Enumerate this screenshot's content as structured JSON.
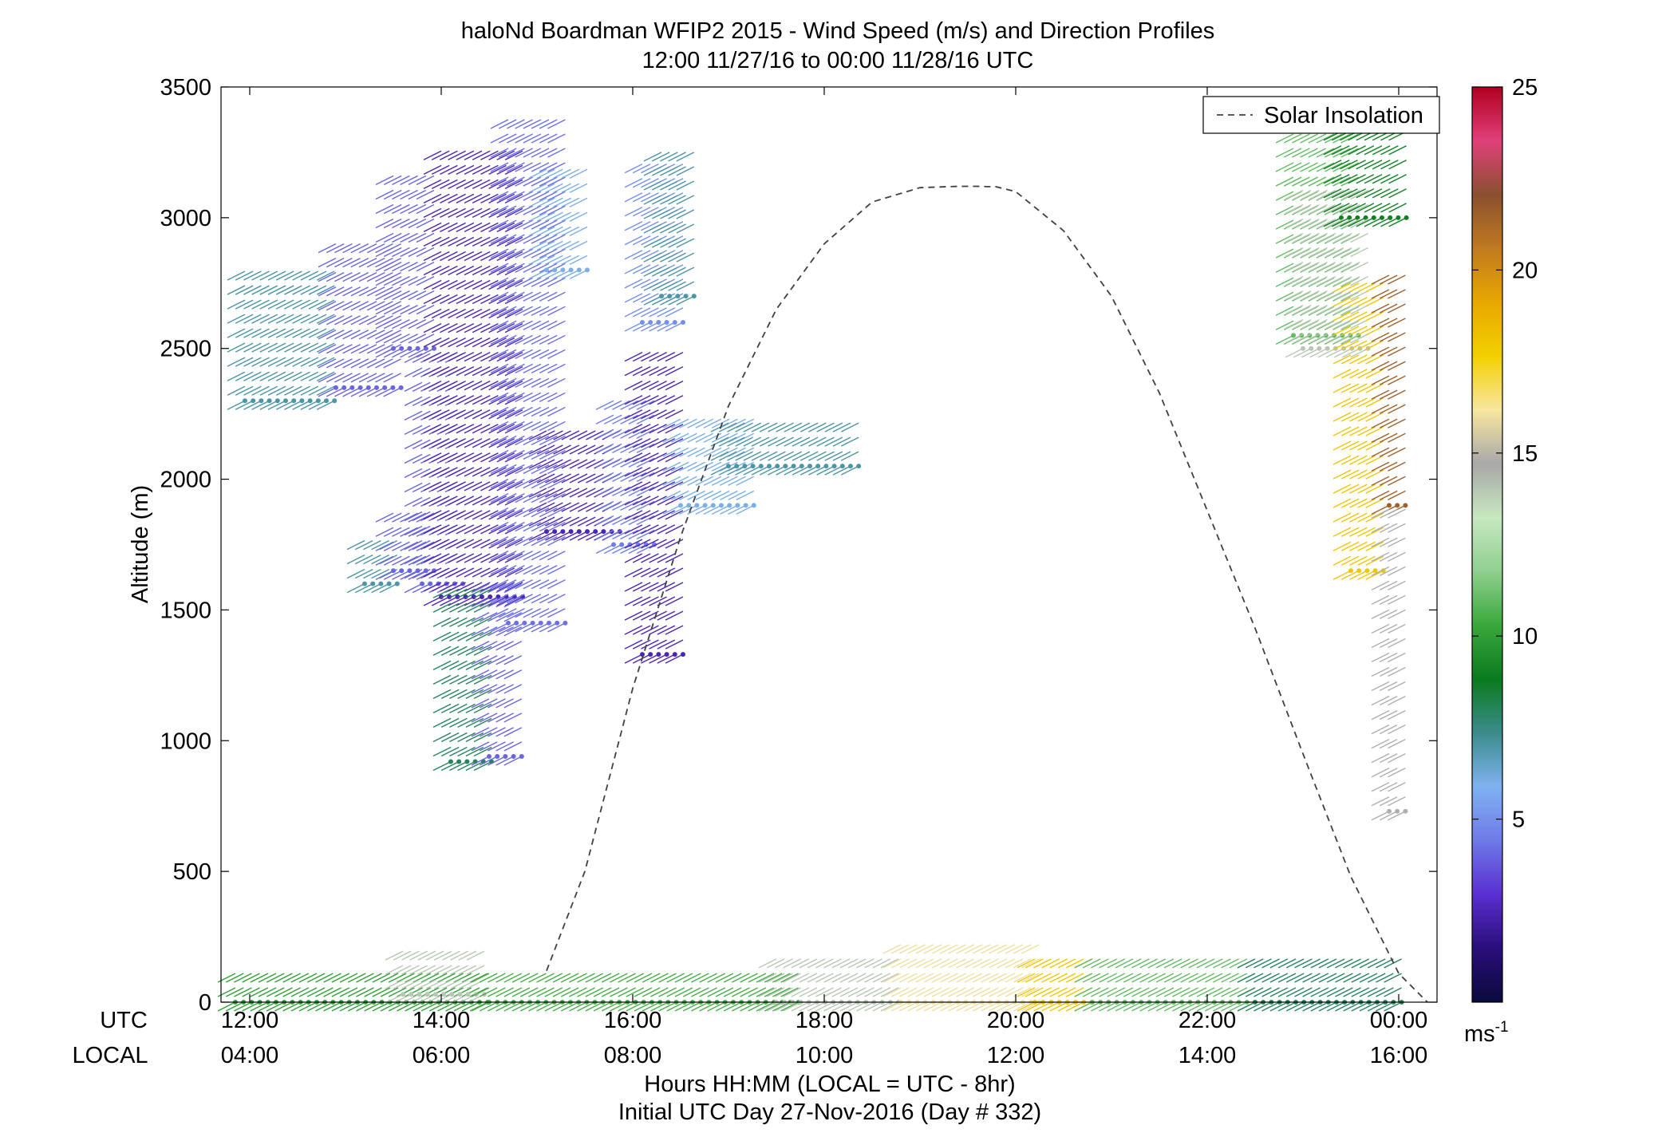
{
  "chart_data": {
    "type": "scatter",
    "title": "haloNd Boardman WFIP2 2015 - Wind Speed (m/s) and Direction Profiles",
    "subtitle": "12:00 11/27/16 to 00:00 11/28/16  UTC",
    "ylabel": "Altitude (m)",
    "xlabel": "Hours HH:MM  (LOCAL = UTC - 8hr)",
    "xlabel2": "Initial UTC Day 27-Nov-2016 (Day # 332)",
    "axis_row_labels": [
      "UTC",
      "LOCAL"
    ],
    "x_ticks_utc": [
      "12:00",
      "14:00",
      "16:00",
      "18:00",
      "20:00",
      "22:00",
      "00:00"
    ],
    "x_ticks_local": [
      "04:00",
      "06:00",
      "08:00",
      "10:00",
      "12:00",
      "14:00",
      "16:00"
    ],
    "x_tick_hours": [
      12,
      14,
      16,
      18,
      20,
      22,
      24
    ],
    "xlim": [
      11.7,
      24.4
    ],
    "y_ticks": [
      0,
      500,
      1000,
      1500,
      2000,
      2500,
      3000,
      3500
    ],
    "ylim": [
      0,
      3500
    ],
    "legend": {
      "label": "Solar Insolation",
      "position": "top-right"
    },
    "colorbar": {
      "ticks": [
        5,
        10,
        15,
        20,
        25
      ],
      "range": [
        0,
        25
      ],
      "unit_label": "ms",
      "unit_exponent": "-1",
      "colors": [
        "#0a0a3c",
        "#2a0e7a",
        "#5a2fd0",
        "#6f7ae8",
        "#7fb2f0",
        "#3c8c8c",
        "#0a7a1e",
        "#3aa83c",
        "#8fcf8f",
        "#c7e8c0",
        "#a8a8a8",
        "#f8e6a0",
        "#f2d000",
        "#e8a800",
        "#c07a20",
        "#8a5030",
        "#e0407a",
        "#b00020"
      ]
    },
    "solar_insolation": {
      "x": [
        15.1,
        15.5,
        16,
        16.5,
        17,
        17.5,
        18,
        18.5,
        19,
        19.4,
        19.6,
        19.8,
        20,
        20.5,
        21,
        21.5,
        22,
        22.5,
        23,
        23.5,
        24,
        24.3
      ],
      "y": [
        120,
        500,
        1200,
        1780,
        2280,
        2650,
        2900,
        3060,
        3115,
        3120,
        3120,
        3118,
        3100,
        2950,
        2700,
        2330,
        1880,
        1430,
        950,
        480,
        110,
        0
      ]
    },
    "wind_clusters": [
      {
        "x0": 11.95,
        "x1": 12.9,
        "y0": 2300,
        "y1": 2800,
        "speed": 7
      },
      {
        "x0": 12.9,
        "x1": 13.6,
        "y0": 2350,
        "y1": 2950,
        "speed": 4
      },
      {
        "x0": 13.5,
        "x1": 14.0,
        "y0": 2500,
        "y1": 3200,
        "speed": 4
      },
      {
        "x0": 13.2,
        "x1": 13.6,
        "y0": 1600,
        "y1": 1800,
        "speed": 7
      },
      {
        "x0": 13.5,
        "x1": 14.0,
        "y0": 1650,
        "y1": 1900,
        "speed": 4
      },
      {
        "x0": 13.8,
        "x1": 14.3,
        "y0": 1600,
        "y1": 2500,
        "speed": 4
      },
      {
        "x0": 14.0,
        "x1": 14.9,
        "y0": 1550,
        "y1": 3300,
        "speed": 2.5
      },
      {
        "x0": 14.1,
        "x1": 14.6,
        "y0": 920,
        "y1": 1600,
        "speed": 8
      },
      {
        "x0": 14.5,
        "x1": 14.9,
        "y0": 940,
        "y1": 1600,
        "speed": 4
      },
      {
        "x0": 14.7,
        "x1": 15.3,
        "y0": 1450,
        "y1": 3400,
        "speed": 4.2
      },
      {
        "x0": 15.1,
        "x1": 15.6,
        "y0": 2800,
        "y1": 3200,
        "speed": 6
      },
      {
        "x0": 15.1,
        "x1": 15.9,
        "y0": 1800,
        "y1": 2200,
        "speed": 2.5
      },
      {
        "x0": 15.8,
        "x1": 16.3,
        "y0": 1750,
        "y1": 2350,
        "speed": 4.5
      },
      {
        "x0": 16.1,
        "x1": 16.6,
        "y0": 1330,
        "y1": 2500,
        "speed": 2.5
      },
      {
        "x0": 16.1,
        "x1": 16.6,
        "y0": 2600,
        "y1": 3250,
        "speed": 5
      },
      {
        "x0": 16.3,
        "x1": 16.7,
        "y0": 2700,
        "y1": 3250,
        "speed": 7
      },
      {
        "x0": 16.5,
        "x1": 17.3,
        "y0": 1900,
        "y1": 2250,
        "speed": 6
      },
      {
        "x0": 17.0,
        "x1": 18.4,
        "y0": 2050,
        "y1": 2250,
        "speed": 7
      },
      {
        "x0": 11.85,
        "x1": 14.5,
        "y0": 0,
        "y1": 130,
        "speed": 10
      },
      {
        "x0": 13.6,
        "x1": 14.5,
        "y0": 30,
        "y1": 200,
        "speed": 14
      },
      {
        "x0": 14.5,
        "x1": 17.8,
        "y0": 0,
        "y1": 130,
        "speed": 10.5
      },
      {
        "x0": 17.5,
        "x1": 18.8,
        "y0": 0,
        "y1": 180,
        "speed": 14
      },
      {
        "x0": 18.8,
        "x1": 20.3,
        "y0": 0,
        "y1": 260,
        "speed": 16
      },
      {
        "x0": 20.2,
        "x1": 20.8,
        "y0": 0,
        "y1": 200,
        "speed": 18
      },
      {
        "x0": 20.8,
        "x1": 22.5,
        "y0": 0,
        "y1": 180,
        "speed": 11
      },
      {
        "x0": 22.5,
        "x1": 24.1,
        "y0": 0,
        "y1": 200,
        "speed": 8
      },
      {
        "x0": 22.9,
        "x1": 23.6,
        "y0": 2550,
        "y1": 3450,
        "speed": 11
      },
      {
        "x0": 23.4,
        "x1": 24.1,
        "y0": 3000,
        "y1": 3450,
        "speed": 9
      },
      {
        "x0": 23.0,
        "x1": 23.7,
        "y0": 2500,
        "y1": 3150,
        "speed": 14
      },
      {
        "x0": 23.5,
        "x1": 23.9,
        "y0": 1650,
        "y1": 2750,
        "speed": 18
      },
      {
        "x0": 23.9,
        "x1": 24.1,
        "y0": 1900,
        "y1": 2800,
        "speed": 21.5
      },
      {
        "x0": 23.9,
        "x1": 24.1,
        "y0": 730,
        "y1": 1900,
        "speed": 14.5
      }
    ]
  }
}
